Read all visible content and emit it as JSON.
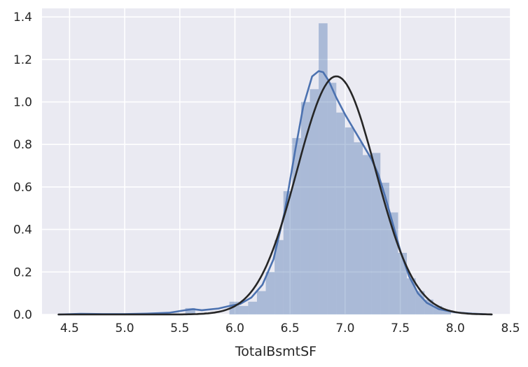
{
  "chart_data": {
    "type": "histogram",
    "title": "",
    "xlabel": "TotalBsmtSF",
    "ylabel": "",
    "xlim": [
      4.25,
      8.5
    ],
    "ylim": [
      0,
      1.44
    ],
    "grid": true,
    "background": "#EAEAF2",
    "x_ticks": [
      "4.5",
      "5.0",
      "5.5",
      "6.0",
      "6.5",
      "7.0",
      "7.5",
      "8.0",
      "8.5"
    ],
    "y_ticks": [
      "0.0",
      "0.2",
      "0.4",
      "0.6",
      "0.8",
      "1.0",
      "1.2",
      "1.4"
    ],
    "histogram": {
      "color": "#4C72B0",
      "bins": [
        {
          "x0": 5.55,
          "x1": 5.64,
          "y": 0.03
        },
        {
          "x0": 5.95,
          "x1": 6.04,
          "y": 0.06
        },
        {
          "x0": 6.04,
          "x1": 6.12,
          "y": 0.04
        },
        {
          "x0": 6.12,
          "x1": 6.2,
          "y": 0.06
        },
        {
          "x0": 6.2,
          "x1": 6.28,
          "y": 0.11
        },
        {
          "x0": 6.28,
          "x1": 6.36,
          "y": 0.2
        },
        {
          "x0": 6.36,
          "x1": 6.44,
          "y": 0.35
        },
        {
          "x0": 6.44,
          "x1": 6.52,
          "y": 0.58
        },
        {
          "x0": 6.52,
          "x1": 6.6,
          "y": 0.83
        },
        {
          "x0": 6.6,
          "x1": 6.68,
          "y": 1.0
        },
        {
          "x0": 6.68,
          "x1": 6.76,
          "y": 1.06
        },
        {
          "x0": 6.76,
          "x1": 6.84,
          "y": 1.37
        },
        {
          "x0": 6.84,
          "x1": 6.92,
          "y": 1.09
        },
        {
          "x0": 6.92,
          "x1": 7.0,
          "y": 0.95
        },
        {
          "x0": 7.0,
          "x1": 7.08,
          "y": 0.88
        },
        {
          "x0": 7.08,
          "x1": 7.16,
          "y": 0.81
        },
        {
          "x0": 7.16,
          "x1": 7.24,
          "y": 0.75
        },
        {
          "x0": 7.24,
          "x1": 7.32,
          "y": 0.76
        },
        {
          "x0": 7.32,
          "x1": 7.4,
          "y": 0.62
        },
        {
          "x0": 7.4,
          "x1": 7.48,
          "y": 0.48
        },
        {
          "x0": 7.48,
          "x1": 7.56,
          "y": 0.29
        },
        {
          "x0": 7.56,
          "x1": 7.64,
          "y": 0.17
        },
        {
          "x0": 7.64,
          "x1": 7.72,
          "y": 0.11
        },
        {
          "x0": 7.72,
          "x1": 7.8,
          "y": 0.07
        },
        {
          "x0": 7.8,
          "x1": 7.88,
          "y": 0.04
        },
        {
          "x0": 7.88,
          "x1": 7.96,
          "y": 0.02
        }
      ]
    },
    "series": [
      {
        "kind": "kde",
        "color": "#4C72B0",
        "x": [
          4.4,
          4.6,
          4.8,
          5.0,
          5.2,
          5.4,
          5.55,
          5.62,
          5.7,
          5.85,
          5.95,
          6.05,
          6.15,
          6.25,
          6.35,
          6.45,
          6.55,
          6.62,
          6.7,
          6.76,
          6.8,
          6.85,
          6.92,
          7.0,
          7.08,
          7.16,
          7.24,
          7.3,
          7.36,
          7.42,
          7.5,
          7.58,
          7.66,
          7.74,
          7.85,
          8.0,
          8.15,
          8.33
        ],
        "y": [
          0.0,
          0.003,
          0.002,
          0.002,
          0.004,
          0.008,
          0.02,
          0.025,
          0.02,
          0.028,
          0.04,
          0.05,
          0.08,
          0.14,
          0.26,
          0.48,
          0.78,
          0.98,
          1.12,
          1.145,
          1.14,
          1.1,
          1.02,
          0.94,
          0.87,
          0.8,
          0.73,
          0.66,
          0.56,
          0.45,
          0.3,
          0.18,
          0.1,
          0.055,
          0.025,
          0.01,
          0.004,
          0.0
        ]
      },
      {
        "kind": "normal-fit",
        "color": "#262626",
        "mean": 6.92,
        "std": 0.356,
        "x_range": [
          4.4,
          8.33
        ]
      }
    ]
  }
}
